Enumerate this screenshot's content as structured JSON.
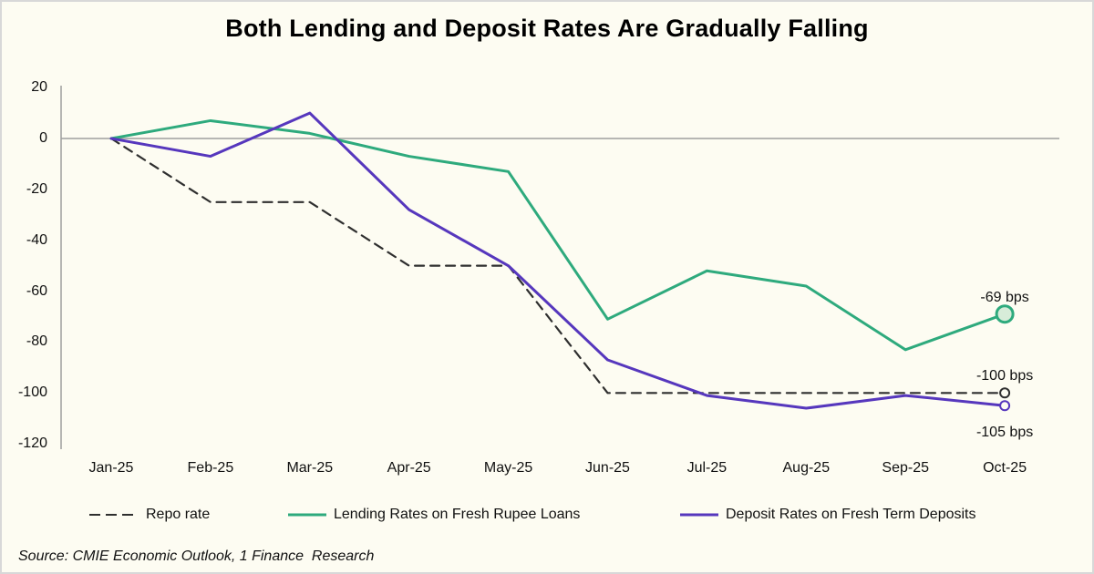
{
  "title": "Both Lending and Deposit Rates Are Gradually Falling",
  "source_note": "Source: CMIE Economic Outlook, 1 Finance  Research",
  "colors": {
    "background": "#fdfcf2",
    "axis": "#9e9e9e",
    "repo": "#2f2f2f",
    "lending": "#2eaa7d",
    "lending_marker_fill": "#d7ecd9",
    "deposit": "#5637bd",
    "open_marker_fill": "#fdfcf2"
  },
  "chart_data": {
    "type": "line",
    "title": "Both Lending and Deposit Rates Are Gradually Falling",
    "xlabel": "",
    "ylabel": "",
    "value_unit": "bps",
    "categories": [
      "Jan-25",
      "Feb-25",
      "Mar-25",
      "Apr-25",
      "May-25",
      "Jun-25",
      "Jul-25",
      "Aug-25",
      "Sep-25",
      "Oct-25"
    ],
    "ylim": [
      -120,
      20
    ],
    "yticks": [
      20,
      0,
      -20,
      -40,
      -60,
      -80,
      -100,
      -120
    ],
    "grid": false,
    "zero_line": true,
    "legend_position": "bottom",
    "series": [
      {
        "name": "Repo rate",
        "line_style": "dashed",
        "color": "#2f2f2f",
        "values": [
          0,
          -25,
          -25,
          -50,
          -50,
          -100,
          -100,
          -100,
          -100,
          -100
        ],
        "end_label": "-100 bps",
        "end_label_position": "above"
      },
      {
        "name": "Lending Rates on Fresh Rupee Loans",
        "line_style": "solid",
        "color": "#2eaa7d",
        "values": [
          0,
          7,
          2,
          -7,
          -13,
          -71,
          -52,
          -58,
          -83,
          -69
        ],
        "end_label": "-69 bps",
        "end_label_position": "above"
      },
      {
        "name": "Deposit Rates on Fresh Term Deposits",
        "line_style": "solid",
        "color": "#5637bd",
        "values": [
          0,
          -7,
          10,
          -28,
          -50,
          -87,
          -101,
          -106,
          -101,
          -105
        ],
        "end_label": "-105 bps",
        "end_label_position": "below"
      }
    ]
  }
}
